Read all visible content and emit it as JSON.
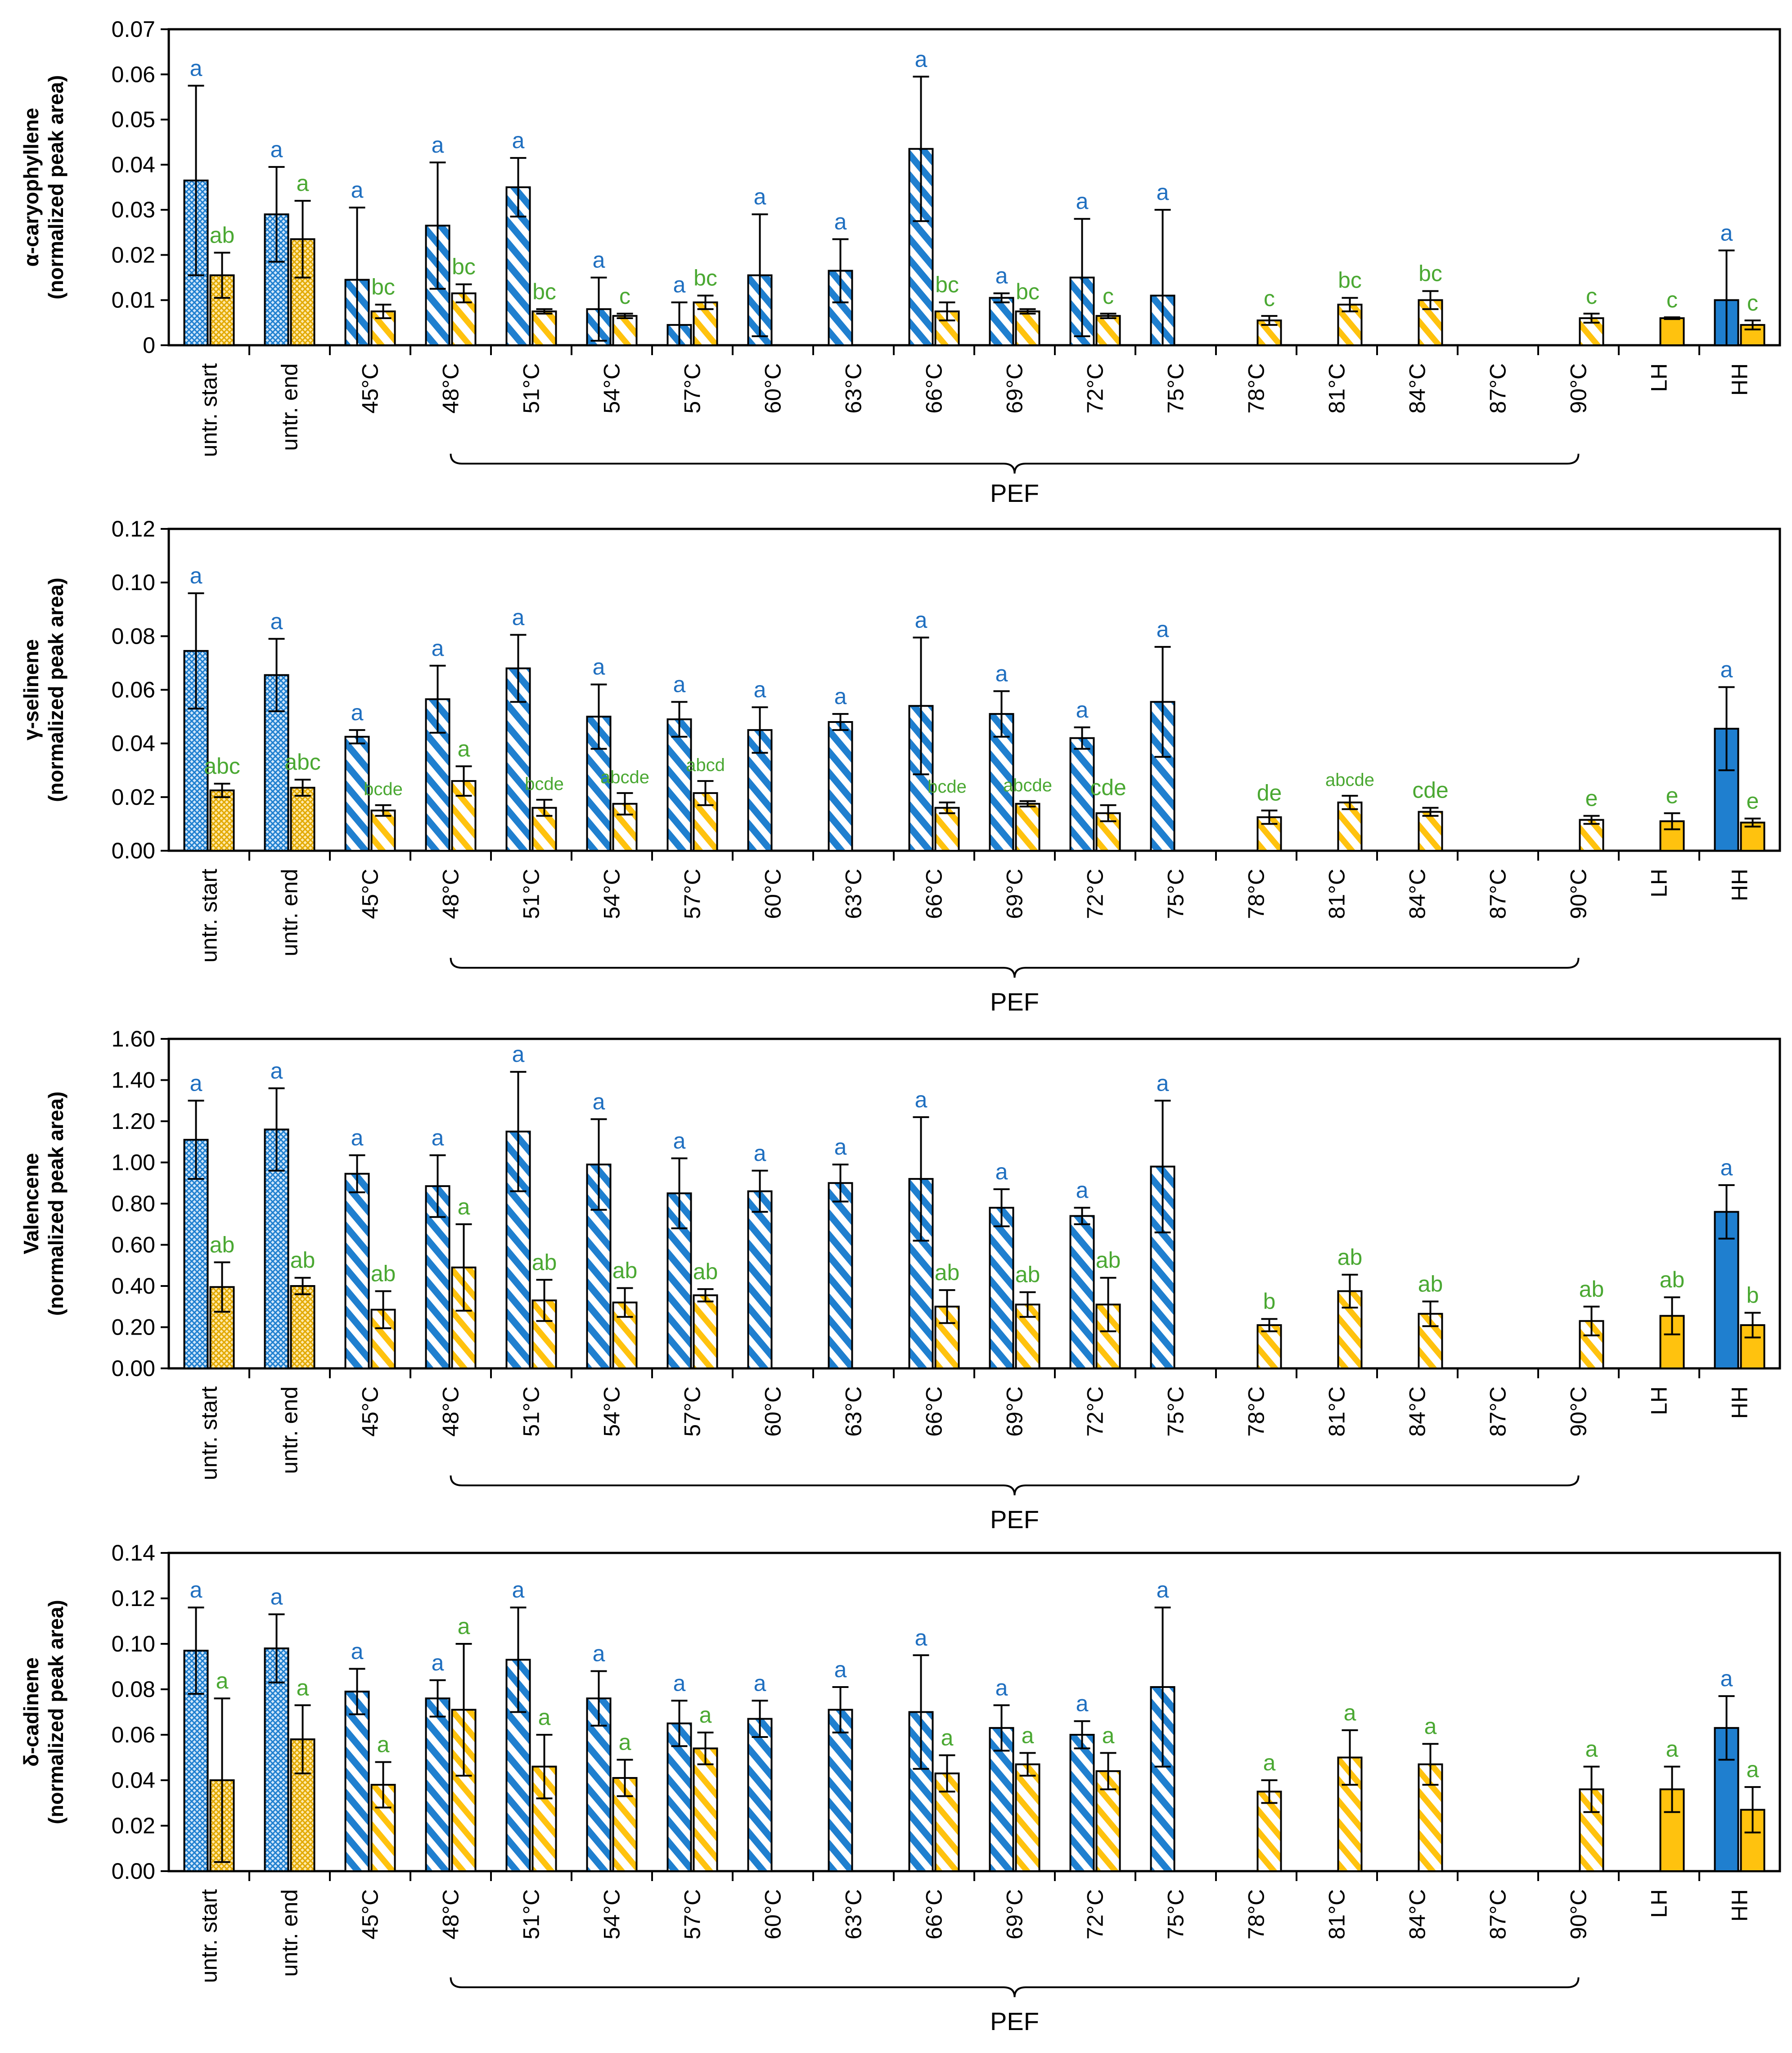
{
  "chart_data": [
    {
      "type": "bar",
      "ylabel": "α-caryophyllene",
      "ylabel_sub": "(normalized peak area)",
      "ylim": [
        0,
        0.07
      ],
      "yticks": [
        "0",
        "0.01",
        "0.02",
        "0.03",
        "0.04",
        "0.05",
        "0.06",
        "0.07"
      ],
      "xlabel": "PEF",
      "categories": [
        "untr. start",
        "untr. end",
        "45°C",
        "48°C",
        "51°C",
        "54°C",
        "57°C",
        "60°C",
        "63°C",
        "66°C",
        "69°C",
        "72°C",
        "75°C",
        "78°C",
        "81°C",
        "84°C",
        "87°C",
        "90°C",
        "LH",
        "HH"
      ],
      "series": [
        {
          "name": "blue",
          "values": [
            0.0365,
            0.029,
            0.0145,
            0.0265,
            0.035,
            0.008,
            0.0045,
            0.0155,
            0.0165,
            0.0435,
            0.0105,
            0.015,
            0.011,
            null,
            null,
            null,
            null,
            null,
            null,
            0.01
          ],
          "errors": [
            0.021,
            0.0105,
            0.016,
            0.014,
            0.0065,
            0.007,
            0.005,
            0.0135,
            0.007,
            0.016,
            0.001,
            0.013,
            0.019,
            null,
            null,
            null,
            null,
            null,
            null,
            0.011
          ],
          "labels": [
            "a",
            "a",
            "a",
            "a",
            "a",
            "a",
            "a",
            "a",
            "a",
            "a",
            "a",
            "a",
            "a",
            "",
            "",
            "",
            "",
            "",
            "",
            "a"
          ]
        },
        {
          "name": "orange",
          "values": [
            0.0155,
            0.0235,
            0.0075,
            0.0115,
            0.0075,
            0.0065,
            0.0095,
            null,
            null,
            0.0075,
            0.0075,
            0.0065,
            null,
            0.0055,
            0.009,
            0.01,
            null,
            0.006,
            0.006,
            0.0045
          ],
          "errors": [
            0.005,
            0.0085,
            0.0015,
            0.002,
            0.0005,
            0.0005,
            0.0015,
            null,
            null,
            0.002,
            0.0005,
            0.0005,
            null,
            0.001,
            0.0015,
            0.002,
            null,
            0.001,
            0.0002,
            0.001
          ],
          "labels": [
            "ab",
            "a",
            "bc",
            "bc",
            "bc",
            "c",
            "bc",
            "",
            "",
            "bc",
            "bc",
            "c",
            "",
            "c",
            "bc",
            "bc",
            "",
            "c",
            "c",
            "c"
          ]
        }
      ]
    },
    {
      "type": "bar",
      "ylabel": "γ-selinene",
      "ylabel_sub": "(normalized peak area)",
      "ylim": [
        0,
        0.12
      ],
      "yticks": [
        "0.00",
        "0.02",
        "0.04",
        "0.06",
        "0.08",
        "0.10",
        "0.12"
      ],
      "xlabel": "PEF",
      "categories": [
        "untr. start",
        "untr. end",
        "45°C",
        "48°C",
        "51°C",
        "54°C",
        "57°C",
        "60°C",
        "63°C",
        "66°C",
        "69°C",
        "72°C",
        "75°C",
        "78°C",
        "81°C",
        "84°C",
        "87°C",
        "90°C",
        "LH",
        "HH"
      ],
      "series": [
        {
          "name": "blue",
          "values": [
            0.0745,
            0.0655,
            0.0425,
            0.0565,
            0.068,
            0.05,
            0.049,
            0.045,
            0.048,
            0.054,
            0.051,
            0.042,
            0.0555,
            null,
            null,
            null,
            null,
            null,
            null,
            0.0455
          ],
          "errors": [
            0.0215,
            0.0135,
            0.0025,
            0.0125,
            0.0125,
            0.012,
            0.0065,
            0.0085,
            0.003,
            0.0255,
            0.0085,
            0.004,
            0.0205,
            null,
            null,
            null,
            null,
            null,
            null,
            0.0155
          ],
          "labels": [
            "a",
            "a",
            "a",
            "a",
            "a",
            "a",
            "a",
            "a",
            "a",
            "a",
            "a",
            "a",
            "a",
            "",
            "",
            "",
            "",
            "",
            "",
            "a"
          ]
        },
        {
          "name": "orange",
          "values": [
            0.0225,
            0.0235,
            0.015,
            0.026,
            0.016,
            0.0175,
            0.0215,
            null,
            null,
            0.016,
            0.0175,
            0.014,
            null,
            0.0125,
            0.018,
            0.0145,
            null,
            0.0115,
            0.011,
            0.0105
          ],
          "errors": [
            0.0025,
            0.003,
            0.002,
            0.0055,
            0.003,
            0.004,
            0.0045,
            null,
            null,
            0.002,
            0.001,
            0.003,
            null,
            0.0025,
            0.0025,
            0.0015,
            null,
            0.0015,
            0.003,
            0.0015
          ],
          "labels": [
            "abc",
            "abc",
            "bcde",
            "a",
            "bcde",
            "abcde",
            "abcd",
            "",
            "",
            "bcde",
            "abcde",
            "cde",
            "",
            "de",
            "abcde",
            "cde",
            "",
            "e",
            "e",
            "e"
          ]
        }
      ]
    },
    {
      "type": "bar",
      "ylabel": "Valencene",
      "ylabel_sub": "(normalized peak area)",
      "ylim": [
        0,
        1.6
      ],
      "yticks": [
        "0.00",
        "0.20",
        "0.40",
        "0.60",
        "0.80",
        "1.00",
        "1.20",
        "1.40",
        "1.60"
      ],
      "xlabel": "PEF",
      "categories": [
        "untr. start",
        "untr. end",
        "45°C",
        "48°C",
        "51°C",
        "54°C",
        "57°C",
        "60°C",
        "63°C",
        "66°C",
        "69°C",
        "72°C",
        "75°C",
        "78°C",
        "81°C",
        "84°C",
        "87°C",
        "90°C",
        "LH",
        "HH"
      ],
      "series": [
        {
          "name": "blue",
          "values": [
            1.11,
            1.16,
            0.945,
            0.885,
            1.15,
            0.99,
            0.85,
            0.86,
            0.9,
            0.92,
            0.78,
            0.74,
            0.98,
            null,
            null,
            null,
            null,
            null,
            null,
            0.76
          ],
          "errors": [
            0.19,
            0.2,
            0.09,
            0.15,
            0.29,
            0.22,
            0.17,
            0.1,
            0.09,
            0.3,
            0.09,
            0.04,
            0.32,
            null,
            null,
            null,
            null,
            null,
            null,
            0.13
          ],
          "labels": [
            "a",
            "a",
            "a",
            "a",
            "a",
            "a",
            "a",
            "a",
            "a",
            "a",
            "a",
            "a",
            "a",
            "",
            "",
            "",
            "",
            "",
            "",
            "a"
          ]
        },
        {
          "name": "orange",
          "values": [
            0.395,
            0.4,
            0.285,
            0.49,
            0.33,
            0.32,
            0.355,
            null,
            null,
            0.3,
            0.31,
            0.31,
            null,
            0.21,
            0.375,
            0.265,
            null,
            0.23,
            0.255,
            0.21
          ],
          "errors": [
            0.12,
            0.04,
            0.09,
            0.21,
            0.1,
            0.07,
            0.03,
            null,
            null,
            0.08,
            0.06,
            0.13,
            null,
            0.03,
            0.08,
            0.06,
            null,
            0.07,
            0.09,
            0.06
          ],
          "labels": [
            "ab",
            "ab",
            "ab",
            "a",
            "ab",
            "ab",
            "ab",
            "",
            "",
            "ab",
            "ab",
            "ab",
            "",
            "b",
            "ab",
            "ab",
            "",
            "ab",
            "ab",
            "b"
          ]
        }
      ]
    },
    {
      "type": "bar",
      "ylabel": "δ-cadinene",
      "ylabel_sub": "(normalized peak area)",
      "ylim": [
        0,
        0.14
      ],
      "yticks": [
        "0.00",
        "0.02",
        "0.04",
        "0.06",
        "0.08",
        "0.10",
        "0.12",
        "0.14"
      ],
      "xlabel": "PEF",
      "categories": [
        "untr. start",
        "untr. end",
        "45°C",
        "48°C",
        "51°C",
        "54°C",
        "57°C",
        "60°C",
        "63°C",
        "66°C",
        "69°C",
        "72°C",
        "75°C",
        "78°C",
        "81°C",
        "84°C",
        "87°C",
        "90°C",
        "LH",
        "HH"
      ],
      "series": [
        {
          "name": "blue",
          "values": [
            0.097,
            0.098,
            0.079,
            0.076,
            0.093,
            0.076,
            0.065,
            0.067,
            0.071,
            0.07,
            0.063,
            0.06,
            0.081,
            null,
            null,
            null,
            null,
            null,
            null,
            0.063
          ],
          "errors": [
            0.019,
            0.015,
            0.01,
            0.008,
            0.023,
            0.012,
            0.01,
            0.008,
            0.01,
            0.025,
            0.01,
            0.006,
            0.035,
            null,
            null,
            null,
            null,
            null,
            null,
            0.014
          ],
          "labels": [
            "a",
            "a",
            "a",
            "a",
            "a",
            "a",
            "a",
            "a",
            "a",
            "a",
            "a",
            "a",
            "a",
            "",
            "",
            "",
            "",
            "",
            "",
            "a"
          ]
        },
        {
          "name": "orange",
          "values": [
            0.04,
            0.058,
            0.038,
            0.071,
            0.046,
            0.041,
            0.054,
            null,
            null,
            0.043,
            0.047,
            0.044,
            null,
            0.035,
            0.05,
            0.047,
            null,
            0.036,
            0.036,
            0.027
          ],
          "errors": [
            0.036,
            0.015,
            0.01,
            0.029,
            0.014,
            0.008,
            0.007,
            null,
            null,
            0.008,
            0.005,
            0.008,
            null,
            0.005,
            0.012,
            0.009,
            null,
            0.01,
            0.01,
            0.01
          ],
          "labels": [
            "a",
            "a",
            "a",
            "a",
            "a",
            "a",
            "a",
            "",
            "",
            "a",
            "a",
            "a",
            "",
            "a",
            "a",
            "a",
            "",
            "a",
            "a",
            "a"
          ]
        }
      ]
    }
  ],
  "colors": {
    "blue": "#1f7fcf",
    "orange": "#ffc20e",
    "blue_label": "#1f6fc0",
    "green_label": "#4aa832",
    "axis": "#000000"
  }
}
